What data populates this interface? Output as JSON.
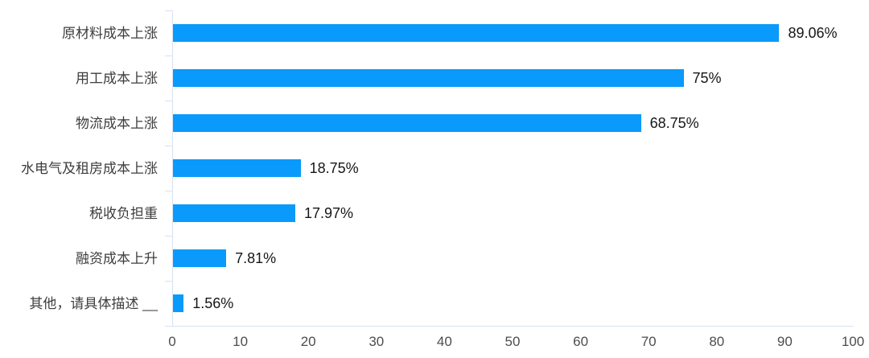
{
  "chart_data": {
    "type": "bar",
    "orientation": "horizontal",
    "title": "",
    "xlabel": "",
    "ylabel": "",
    "categories": [
      "原材料成本上涨",
      "用工成本上涨",
      "物流成本上涨",
      "水电气及租房成本上涨",
      "税收负担重",
      "融资成本上升",
      "其他，请具体描述 __"
    ],
    "values": [
      89.06,
      75,
      68.75,
      18.75,
      17.97,
      7.81,
      1.56
    ],
    "value_labels": [
      "89.06%",
      "75%",
      "68.75%",
      "18.75%",
      "17.97%",
      "7.81%",
      "1.56%"
    ],
    "xlim": [
      0,
      100
    ],
    "x_ticks": [
      0,
      10,
      20,
      30,
      40,
      50,
      60,
      70,
      80,
      90,
      100
    ],
    "grid": false,
    "legend": false,
    "colors": {
      "bar": "#0a9afb",
      "axis": "#d9e1f1",
      "category_label": "#3d3d3d",
      "value_label": "#161616",
      "tick_label": "#4d4d4d",
      "background": "#ffffff"
    }
  }
}
